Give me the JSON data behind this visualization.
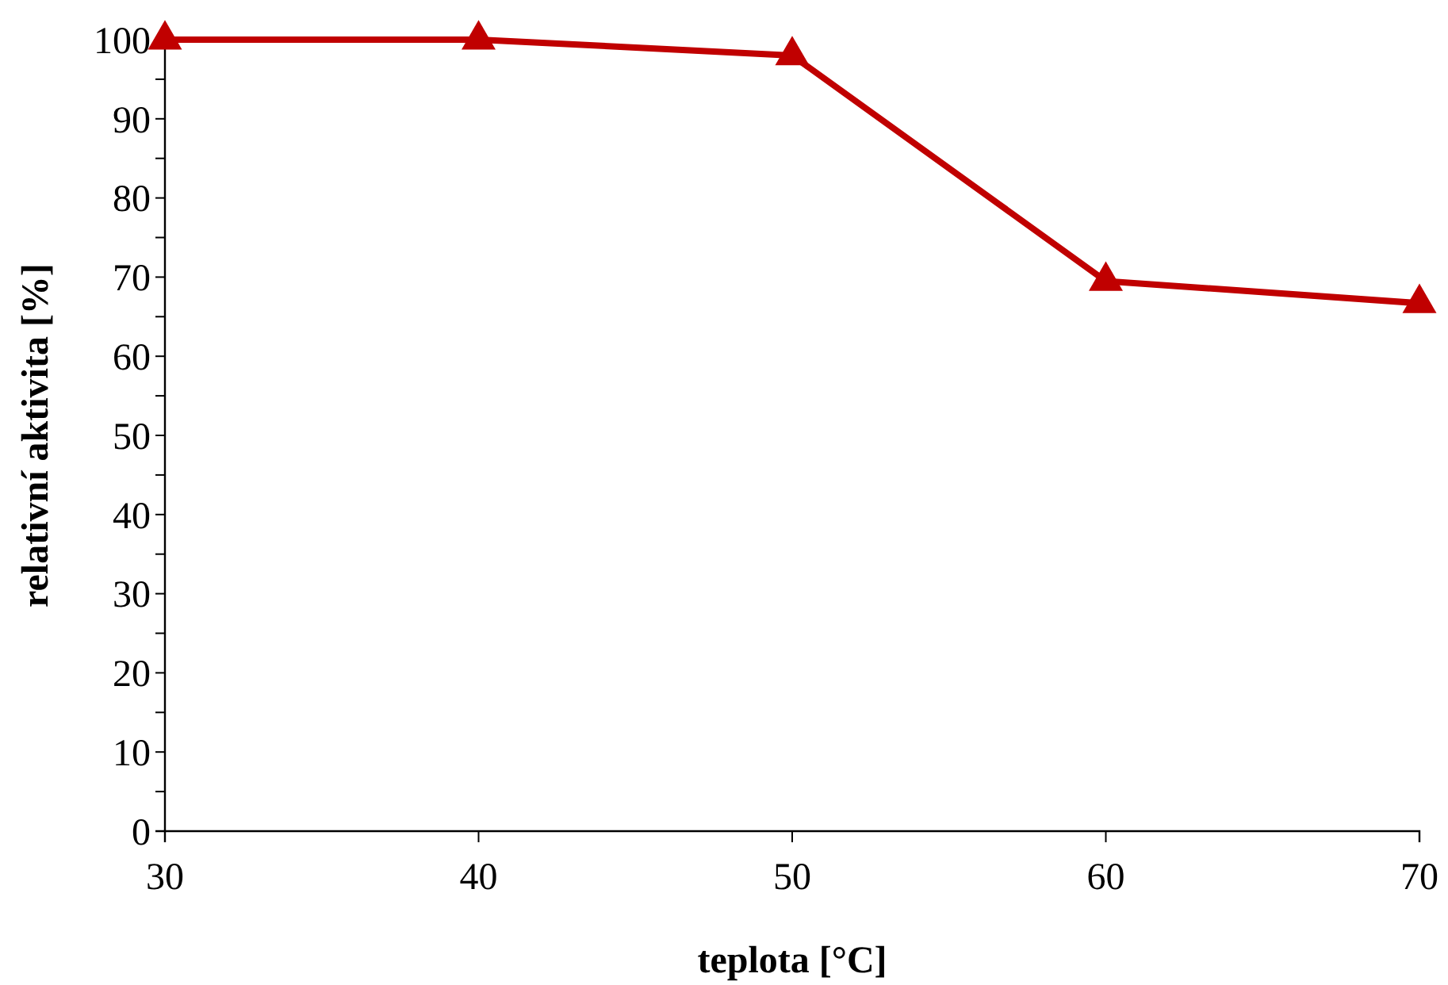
{
  "chart_data": {
    "type": "line",
    "xlabel": "teplota [°C]",
    "ylabel": "relativní aktivita [%]",
    "x": [
      30,
      40,
      50,
      60,
      70
    ],
    "series": [
      {
        "color": "#c00000",
        "values": [
          100,
          100,
          98,
          69.5,
          66.7
        ]
      }
    ],
    "xlim": [
      30,
      70
    ],
    "xticks": [
      30,
      40,
      50,
      60,
      70
    ],
    "ylim": [
      0,
      100
    ],
    "yticks": [
      0,
      {
        "value": 5,
        "label": null
      },
      10,
      {
        "value": 15,
        "label": null
      },
      20,
      {
        "value": 25,
        "label": null
      },
      30,
      {
        "value": 35,
        "label": null
      },
      40,
      {
        "value": 45,
        "label": null
      },
      50,
      {
        "value": 55,
        "label": null
      },
      60,
      {
        "value": 65,
        "label": null
      },
      70,
      {
        "value": 75,
        "label": null
      },
      80,
      {
        "value": 85,
        "label": null
      },
      90,
      {
        "value": 95,
        "label": null
      },
      100
    ],
    "marker": "triangle",
    "line_style": "solid"
  }
}
